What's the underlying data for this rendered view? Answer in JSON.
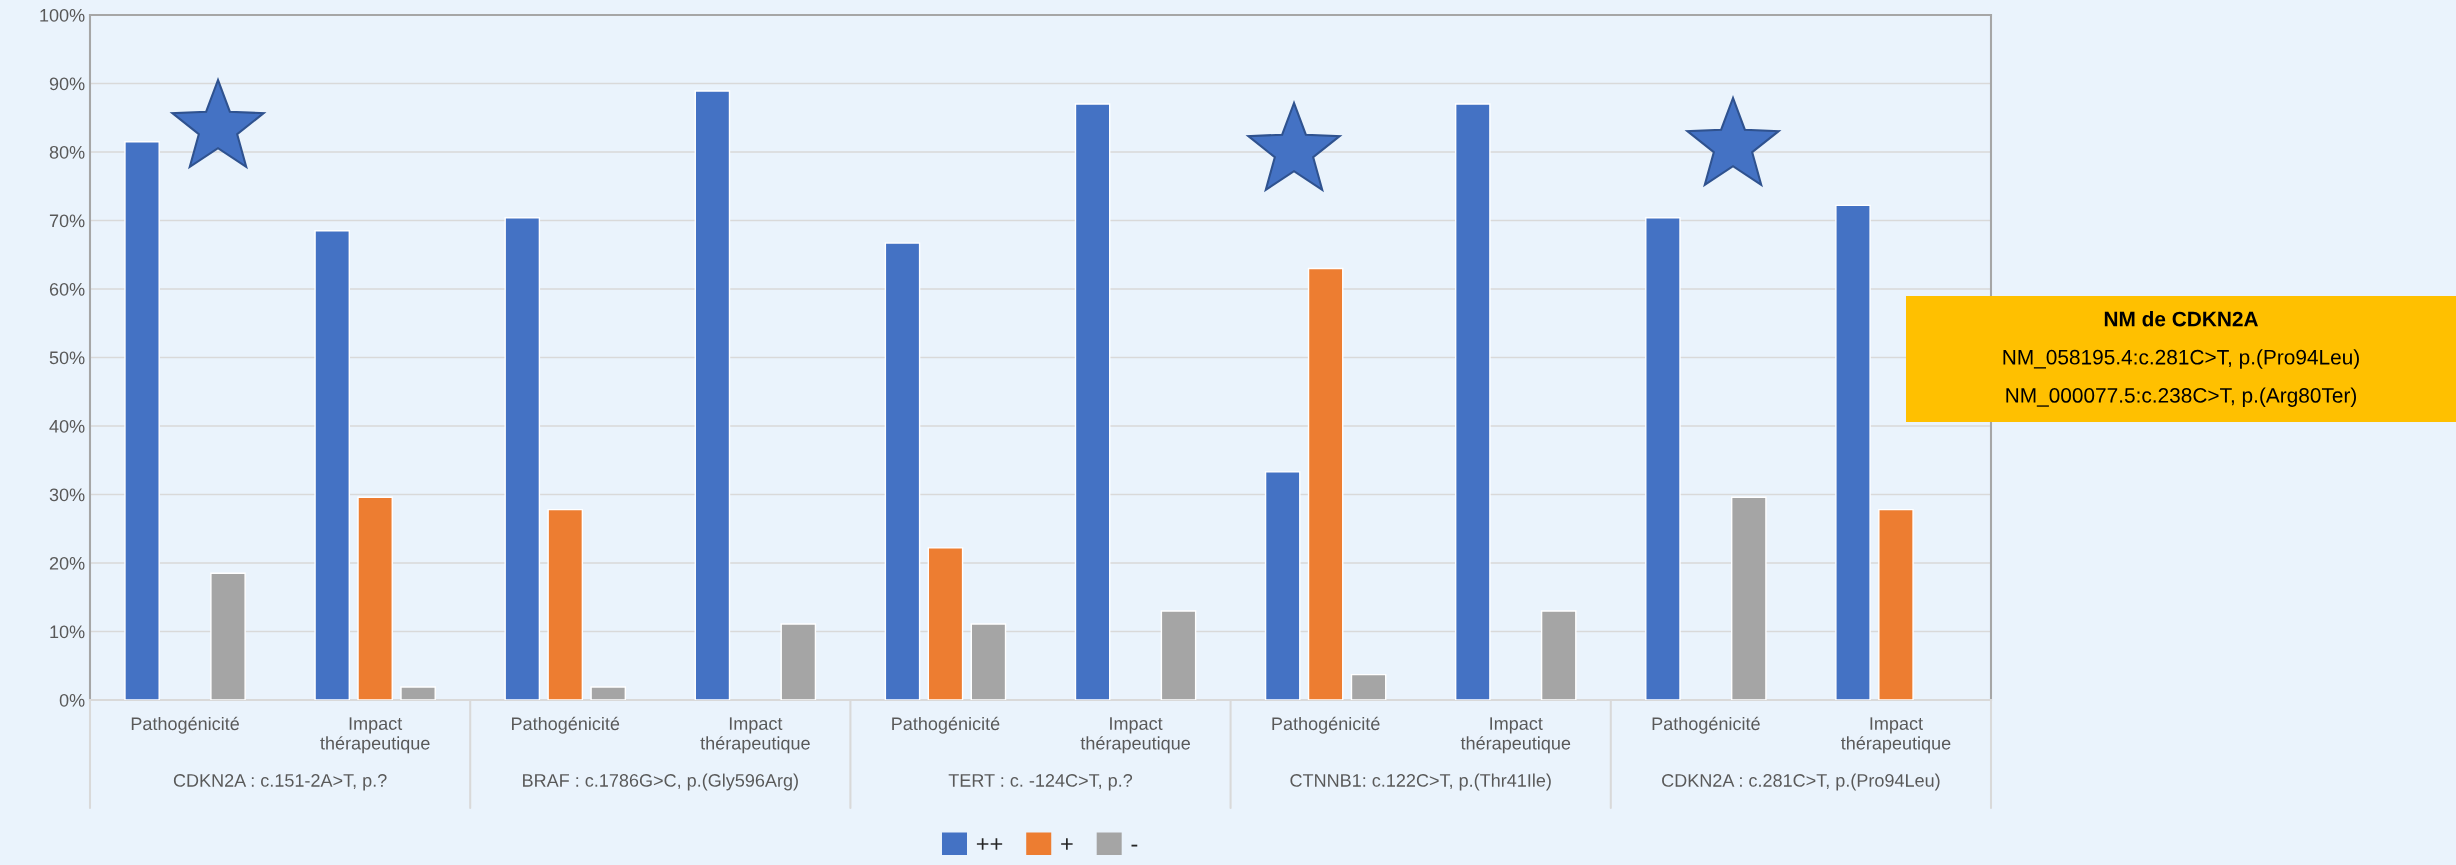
{
  "chart_data": {
    "type": "bar",
    "categories": [
      "Pathogénicité",
      "Impact\nthérapeutique",
      "Pathogénicité",
      "Impact\nthérapeutique",
      "Pathogénicité",
      "Impact\nthérapeutique",
      "Pathogénicité",
      "Impact\nthérapeutique",
      "Pathogénicité",
      "Impact\nthérapeutique"
    ],
    "series": [
      {
        "name": "++",
        "color": "#4472c4",
        "values": [
          81.5,
          68.5,
          70.4,
          88.9,
          66.7,
          87.0,
          33.3,
          87.0,
          70.4,
          72.2
        ]
      },
      {
        "name": "+",
        "color": "#ed7d31",
        "values": [
          null,
          29.6,
          27.8,
          null,
          22.2,
          null,
          63.0,
          null,
          null,
          27.8
        ]
      },
      {
        "name": "-",
        "color": "#a5a5a5",
        "values": [
          18.5,
          1.9,
          1.9,
          11.1,
          11.1,
          13.0,
          3.7,
          13.0,
          29.6,
          null
        ]
      }
    ],
    "ylim": [
      0,
      100
    ],
    "yticks": [
      {
        "value": 0,
        "label": "0%"
      },
      {
        "value": 10,
        "label": "10%"
      },
      {
        "value": 20,
        "label": "20%"
      },
      {
        "value": 30,
        "label": "30%"
      },
      {
        "value": 40,
        "label": "40%"
      },
      {
        "value": 50,
        "label": "50%"
      },
      {
        "value": 60,
        "label": "60%"
      },
      {
        "value": 70,
        "label": "70%"
      },
      {
        "value": 80,
        "label": "80%"
      },
      {
        "value": 90,
        "label": "90%"
      },
      {
        "value": 100,
        "label": "100%"
      }
    ],
    "grid": "y",
    "legend": "bottom",
    "annotations": [
      "CDKN2A : c.151-2A>T, p.?",
      "BRAF : c.1786G>C, p.(Gly596Arg)",
      "TERT : c. -124C>T, p.?",
      "CTNNB1: c.122C>T, p.(Thr41Ile)",
      "CDKN2A : c.281C>T, p.(Pro94Leu)",
      "NM de CDKN2A",
      "NM_058195.4:c.281C>T, p.(Pro94Leu)",
      "NM_000077.5:c.238C>T, p.(Arg80Ter)"
    ]
  }
}
